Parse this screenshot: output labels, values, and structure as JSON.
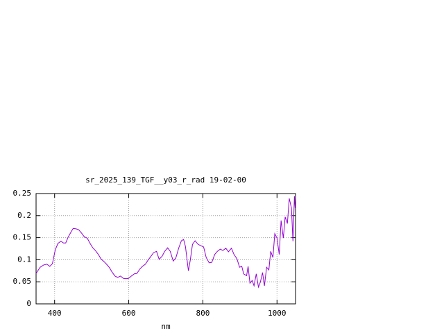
{
  "chart_data": {
    "type": "line",
    "title": "sr_2025_139_TGF__y03_r_rad 19-02-00",
    "x_label": "nm",
    "x": [
      350,
      361,
      370,
      379,
      387,
      394,
      402,
      409,
      417,
      424,
      430,
      437,
      445,
      450,
      458,
      465,
      473,
      480,
      488,
      495,
      503,
      510,
      518,
      525,
      533,
      540,
      548,
      555,
      563,
      570,
      578,
      585,
      593,
      600,
      607,
      615,
      622,
      630,
      637,
      645,
      652,
      660,
      667,
      675,
      682,
      690,
      697,
      705,
      712,
      720,
      727,
      735,
      742,
      748,
      753,
      761,
      766,
      772,
      779,
      787,
      794,
      802,
      809,
      817,
      824,
      832,
      839,
      847,
      854,
      862,
      869,
      877,
      884,
      892,
      899,
      905,
      910,
      918,
      922,
      927,
      933,
      938,
      944,
      950,
      955,
      961,
      966,
      972,
      978,
      983,
      989,
      994,
      1000,
      1006,
      1011,
      1017,
      1022,
      1028,
      1033,
      1039,
      1043,
      1047,
      1049
    ],
    "values": [
      0.069,
      0.083,
      0.088,
      0.09,
      0.085,
      0.091,
      0.123,
      0.137,
      0.142,
      0.138,
      0.138,
      0.152,
      0.164,
      0.171,
      0.17,
      0.168,
      0.16,
      0.152,
      0.149,
      0.138,
      0.127,
      0.121,
      0.112,
      0.102,
      0.096,
      0.09,
      0.082,
      0.072,
      0.063,
      0.06,
      0.063,
      0.058,
      0.057,
      0.058,
      0.063,
      0.068,
      0.069,
      0.079,
      0.085,
      0.09,
      0.099,
      0.108,
      0.116,
      0.119,
      0.101,
      0.108,
      0.119,
      0.127,
      0.119,
      0.097,
      0.104,
      0.127,
      0.143,
      0.146,
      0.13,
      0.075,
      0.099,
      0.135,
      0.143,
      0.135,
      0.132,
      0.129,
      0.105,
      0.093,
      0.094,
      0.112,
      0.119,
      0.124,
      0.121,
      0.126,
      0.118,
      0.126,
      0.112,
      0.102,
      0.083,
      0.085,
      0.068,
      0.064,
      0.085,
      0.047,
      0.053,
      0.041,
      0.068,
      0.038,
      0.049,
      0.071,
      0.041,
      0.083,
      0.077,
      0.119,
      0.105,
      0.159,
      0.149,
      0.112,
      0.189,
      0.149,
      0.197,
      0.182,
      0.239,
      0.217,
      0.142,
      0.244,
      0.217
    ],
    "color": "#9400d3",
    "xlim": [
      350,
      1050
    ],
    "ylim": [
      0,
      0.25
    ],
    "xticks": [
      400,
      600,
      800,
      1000
    ],
    "yticks": [
      0,
      0.05,
      0.1,
      0.15,
      0.2,
      0.25
    ],
    "grid": true
  }
}
